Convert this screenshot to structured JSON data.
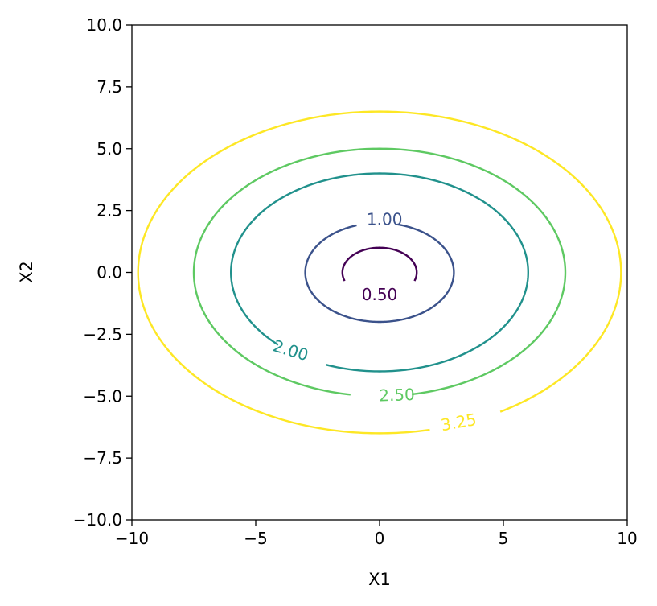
{
  "chart_data": {
    "type": "contour",
    "title": "",
    "xlabel": "X1",
    "ylabel": "X2",
    "xlim": [
      -10,
      10
    ],
    "ylim": [
      -10,
      10
    ],
    "xticks": [
      -10,
      -5,
      0,
      5,
      10
    ],
    "xtick_labels": [
      "−10",
      "−5",
      "0",
      "5",
      "10"
    ],
    "yticks": [
      -10,
      -7.5,
      -5,
      -2.5,
      0,
      2.5,
      5,
      7.5,
      10
    ],
    "ytick_labels": [
      "−10.0",
      "−7.5",
      "−5.0",
      "−2.5",
      "0.0",
      "2.5",
      "5.0",
      "7.5",
      "10.0"
    ],
    "grid": false,
    "legend": "none",
    "colormap": "viridis",
    "levels": [
      {
        "label": "0.50",
        "a": 1.5,
        "b": 1.0,
        "color": "#440154",
        "gap_deg": [
          80,
          100
        ],
        "label_at": [
          0,
          -0.95
        ],
        "label_rot": 0,
        "partial": true
      },
      {
        "label": "1.00",
        "a": 3.0,
        "b": 2.0,
        "color": "#3b528b",
        "gap_deg": [
          76,
          108
        ],
        "label_at": [
          0.2,
          2.1
        ],
        "label_rot": 0
      },
      {
        "label": "2.00",
        "a": 6.0,
        "b": 4.0,
        "color": "#21918c",
        "gap_deg": [
          227,
          249
        ],
        "label_at": [
          -3.6,
          -3.2
        ],
        "label_rot": 17
      },
      {
        "label": "2.50",
        "a": 7.5,
        "b": 5.0,
        "color": "#5ec962",
        "gap_deg": [
          261,
          280
        ],
        "label_at": [
          0.7,
          -5.0
        ],
        "label_rot": -2
      },
      {
        "label": "3.25",
        "a": 9.75,
        "b": 6.5,
        "color": "#fde725",
        "gap_deg": [
          282,
          300
        ],
        "label_at": [
          3.2,
          -6.1
        ],
        "label_rot": -10
      }
    ]
  }
}
